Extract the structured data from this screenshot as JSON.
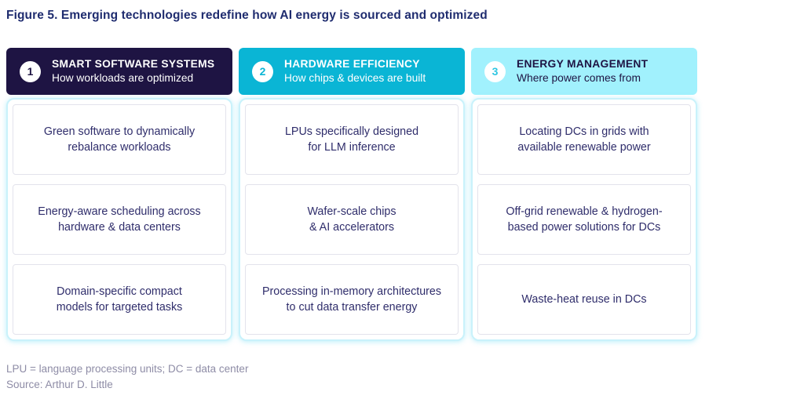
{
  "figure": {
    "title": "Figure 5. Emerging technologies redefine how AI energy is sourced and optimized"
  },
  "columns": [
    {
      "number": "1",
      "heading": "SMART SOFTWARE SYSTEMS",
      "subheading": "How workloads are optimized",
      "cards": [
        {
          "lines": [
            "Green software to dynamically",
            "rebalance workloads"
          ]
        },
        {
          "lines": [
            "Energy-aware scheduling across",
            "hardware & data centers"
          ]
        },
        {
          "lines": [
            "Domain-specific compact",
            "models for targeted tasks"
          ]
        }
      ]
    },
    {
      "number": "2",
      "heading": "HARDWARE EFFICIENCY",
      "subheading": "How chips & devices are built",
      "cards": [
        {
          "lines": [
            "LPUs specifically designed",
            "for LLM inference"
          ]
        },
        {
          "lines": [
            "Wafer-scale chips",
            "& AI accelerators"
          ]
        },
        {
          "lines": [
            "Processing in-memory architectures",
            "to cut data transfer energy"
          ]
        }
      ]
    },
    {
      "number": "3",
      "heading": "ENERGY MANAGEMENT",
      "subheading": "Where power comes from",
      "cards": [
        {
          "lines": [
            "Locating DCs in grids with",
            "available renewable power"
          ]
        },
        {
          "lines": [
            "Off-grid renewable & hydrogen-",
            "based power solutions for DCs"
          ]
        },
        {
          "lines": [
            "Waste-heat reuse in DCs"
          ]
        }
      ]
    }
  ],
  "footer": {
    "abbreviations": "LPU = language processing units; DC = data center",
    "source": "Source: Arthur D. Little"
  },
  "colors": {
    "title_text": "#1f2c6f",
    "header1_bg": "#1e1443",
    "header2_bg": "#0ab5d5",
    "header3_bg": "#a1f1fd",
    "card_text": "#2f2d6b",
    "container_border": "#c9f2fb",
    "footer_text": "#8e8ca6"
  }
}
